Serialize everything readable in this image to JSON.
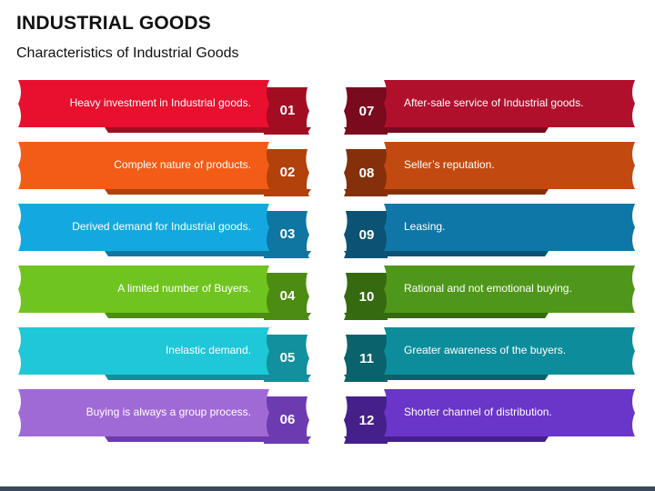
{
  "title": "INDUSTRIAL GOODS",
  "subtitle": "Characteristics of Industrial Goods",
  "items": [
    {
      "num": "01",
      "text": "Heavy investment in Industrial goods.",
      "color": "#e8102e",
      "dark": "#a30d22"
    },
    {
      "num": "02",
      "text": "Complex nature of products.",
      "color": "#f25c17",
      "dark": "#b2410b"
    },
    {
      "num": "03",
      "text": "Derived demand for Industrial goods.",
      "color": "#13a9e0",
      "dark": "#0e76a0"
    },
    {
      "num": "04",
      "text": "A limited number of Buyers.",
      "color": "#70c41f",
      "dark": "#4c8c13"
    },
    {
      "num": "05",
      "text": "Inelastic demand.",
      "color": "#1ec8d8",
      "dark": "#12909d"
    },
    {
      "num": "06",
      "text": "Buying is always a group process.",
      "color": "#a06ad6",
      "dark": "#6c3bb0"
    },
    {
      "num": "07",
      "text": "After-sale service of Industrial goods.",
      "color": "#b1102c",
      "dark": "#7a0a1e"
    },
    {
      "num": "08",
      "text": "Seller’s reputation.",
      "color": "#c24a10",
      "dark": "#85300a"
    },
    {
      "num": "09",
      "text": "Leasing.",
      "color": "#0f77a8",
      "dark": "#0b5274"
    },
    {
      "num": "10",
      "text": "Rational and not emotional buying.",
      "color": "#4f971a",
      "dark": "#356a10"
    },
    {
      "num": "11",
      "text": "Greater awareness of the buyers.",
      "color": "#0d8d9b",
      "dark": "#0a626c"
    },
    {
      "num": "12",
      "text": "Shorter channel of distribution.",
      "color": "#6a35c9",
      "dark": "#45208a"
    }
  ]
}
